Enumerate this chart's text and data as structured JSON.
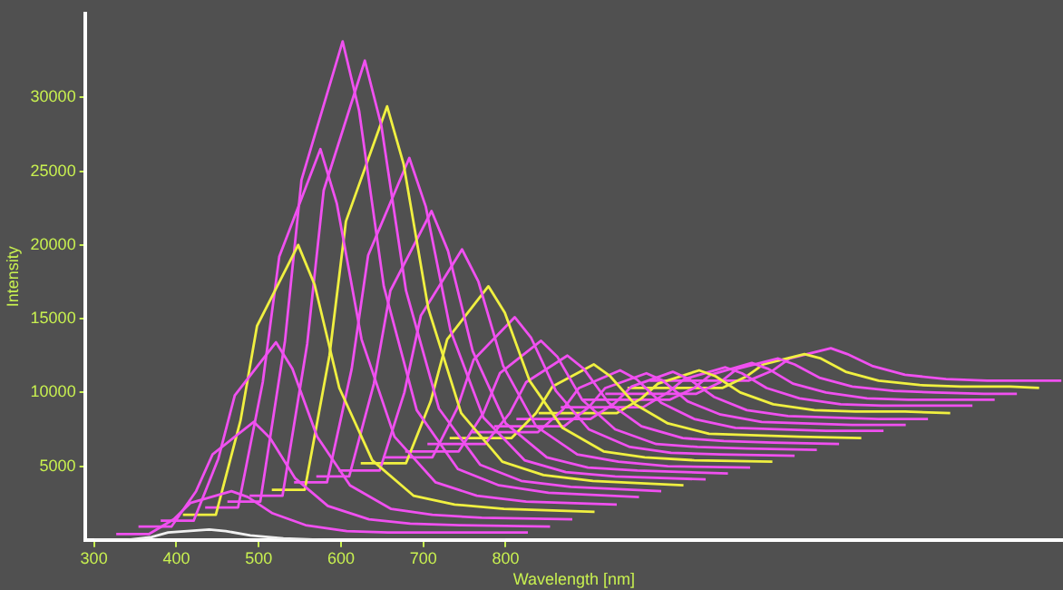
{
  "chart_data": {
    "type": "line",
    "xlabel": "Wavelength [nm]",
    "ylabel": "Intensity",
    "xlim": [
      289,
      1477
    ],
    "ylim": [
      0,
      35700
    ],
    "xticks": [
      300,
      400,
      500,
      600,
      700,
      800
    ],
    "yticks": [
      5000,
      10000,
      15000,
      20000,
      25000,
      30000
    ],
    "grid": false,
    "legend": false,
    "series": [
      {
        "color": "#f0f0f0",
        "x": [
          300,
          340,
          370,
          390,
          440,
          460,
          490,
          530,
          580,
          630,
          690,
          800
        ],
        "values": [
          0,
          0,
          200,
          500,
          700,
          600,
          300,
          100,
          0,
          0,
          0,
          0
        ]
      },
      {
        "color": "#f050f0",
        "x": [
          327,
          367,
          397,
          417,
          467,
          487,
          517,
          557,
          607,
          657,
          717,
          827
        ],
        "values": [
          400,
          400,
          1400,
          2500,
          3300,
          2900,
          1800,
          1000,
          600,
          500,
          500,
          500
        ]
      },
      {
        "color": "#f050f0",
        "x": [
          354,
          394,
          424,
          444,
          494,
          514,
          544,
          584,
          634,
          684,
          744,
          854
        ],
        "values": [
          900,
          900,
          3300,
          5800,
          8000,
          6900,
          4200,
          2300,
          1400,
          1100,
          1000,
          900
        ]
      },
      {
        "color": "#f050f0",
        "x": [
          381,
          421,
          451,
          471,
          521,
          541,
          571,
          611,
          661,
          711,
          771,
          881
        ],
        "values": [
          1300,
          1300,
          5500,
          9800,
          13400,
          11600,
          7000,
          3700,
          2100,
          1700,
          1500,
          1400
        ]
      },
      {
        "color": "#f0f040",
        "x": [
          408,
          448,
          478,
          498,
          548,
          568,
          598,
          638,
          688,
          738,
          798,
          908
        ],
        "values": [
          1700,
          1700,
          8100,
          14500,
          20000,
          17300,
          10300,
          5400,
          3000,
          2400,
          2100,
          1900
        ]
      },
      {
        "color": "#f050f0",
        "x": [
          435,
          475,
          505,
          525,
          575,
          595,
          625,
          665,
          715,
          765,
          825,
          935
        ],
        "values": [
          2200,
          2200,
          10700,
          19200,
          26500,
          22800,
          13600,
          7000,
          3900,
          3000,
          2600,
          2400
        ]
      },
      {
        "color": "#f050f0",
        "x": [
          462,
          502,
          532,
          552,
          602,
          622,
          652,
          692,
          742,
          792,
          852,
          962
        ],
        "values": [
          2600,
          2600,
          13500,
          24400,
          33800,
          29100,
          17200,
          8800,
          4800,
          3700,
          3200,
          2900
        ]
      },
      {
        "color": "#f050f0",
        "x": [
          489,
          529,
          559,
          579,
          629,
          649,
          679,
          719,
          769,
          819,
          879,
          989
        ],
        "values": [
          3000,
          3000,
          13300,
          23700,
          32500,
          28100,
          16900,
          8900,
          5100,
          4000,
          3600,
          3300
        ]
      },
      {
        "color": "#f0f040",
        "x": [
          516,
          556,
          586,
          606,
          656,
          676,
          706,
          746,
          796,
          846,
          906,
          1016
        ],
        "values": [
          3400,
          3400,
          12500,
          21600,
          29400,
          25500,
          15700,
          8600,
          5300,
          4400,
          4000,
          3700
        ]
      },
      {
        "color": "#f050f0",
        "x": [
          543,
          583,
          613,
          633,
          683,
          703,
          733,
          773,
          823,
          873,
          933,
          1043
        ],
        "values": [
          3900,
          3900,
          11600,
          19300,
          25900,
          22600,
          14200,
          8300,
          5400,
          4600,
          4300,
          4100
        ]
      },
      {
        "color": "#f050f0",
        "x": [
          570,
          610,
          640,
          660,
          710,
          730,
          760,
          800,
          850,
          900,
          960,
          1070
        ],
        "values": [
          4300,
          4300,
          10600,
          16900,
          22300,
          19600,
          12800,
          7900,
          5600,
          4900,
          4700,
          4500
        ]
      },
      {
        "color": "#f050f0",
        "x": [
          597,
          647,
          677,
          697,
          747,
          767,
          797,
          837,
          887,
          937,
          997,
          1097
        ],
        "values": [
          4700,
          4700,
          10000,
          15200,
          19700,
          17500,
          11800,
          7700,
          5800,
          5300,
          5000,
          4900
        ]
      },
      {
        "color": "#f0f040",
        "x": [
          624,
          679,
          709,
          729,
          779,
          799,
          829,
          869,
          919,
          969,
          1029,
          1124
        ],
        "values": [
          5200,
          5200,
          9400,
          13600,
          17200,
          15400,
          10800,
          7600,
          6000,
          5600,
          5400,
          5300
        ]
      },
      {
        "color": "#f050f0",
        "x": [
          651,
          711,
          741,
          761,
          811,
          831,
          861,
          901,
          951,
          1001,
          1061,
          1151
        ],
        "values": [
          5600,
          5600,
          8900,
          12200,
          15100,
          13700,
          10100,
          7500,
          6300,
          5900,
          5800,
          5700
        ]
      },
      {
        "color": "#f050f0",
        "x": [
          678,
          743,
          773,
          793,
          843,
          863,
          893,
          933,
          983,
          1033,
          1093,
          1178
        ],
        "values": [
          6000,
          6000,
          8600,
          11300,
          13500,
          12400,
          9500,
          7500,
          6500,
          6300,
          6200,
          6100
        ]
      },
      {
        "color": "#f050f0",
        "x": [
          705,
          775,
          805,
          825,
          875,
          895,
          925,
          965,
          1015,
          1065,
          1125,
          1205
        ],
        "values": [
          6500,
          6500,
          8600,
          10700,
          12500,
          11600,
          9300,
          7700,
          6900,
          6700,
          6600,
          6500
        ]
      },
      {
        "color": "#f0f040",
        "x": [
          732,
          807,
          837,
          857,
          907,
          927,
          957,
          997,
          1047,
          1097,
          1157,
          1232
        ],
        "values": [
          6900,
          6900,
          8600,
          10400,
          11900,
          11100,
          9200,
          7900,
          7200,
          7100,
          7000,
          6900
        ]
      },
      {
        "color": "#f050f0",
        "x": [
          759,
          839,
          869,
          889,
          939,
          959,
          989,
          1029,
          1079,
          1129,
          1189,
          1259
        ],
        "values": [
          7300,
          7300,
          8800,
          10300,
          11500,
          10900,
          9300,
          8200,
          7600,
          7500,
          7400,
          7400
        ]
      },
      {
        "color": "#f050f0",
        "x": [
          786,
          871,
          901,
          921,
          971,
          991,
          1021,
          1061,
          1111,
          1161,
          1221,
          1286
        ],
        "values": [
          7700,
          7700,
          9000,
          10300,
          11300,
          10800,
          9400,
          8500,
          8000,
          7900,
          7800,
          7800
        ]
      },
      {
        "color": "#f050f0",
        "x": [
          813,
          903,
          933,
          953,
          1003,
          1023,
          1053,
          1093,
          1143,
          1193,
          1253,
          1313
        ],
        "values": [
          8200,
          8200,
          9300,
          10400,
          11400,
          10900,
          9700,
          8800,
          8400,
          8300,
          8200,
          8200
        ]
      },
      {
        "color": "#f0f040",
        "x": [
          840,
          935,
          965,
          985,
          1035,
          1055,
          1085,
          1125,
          1175,
          1225,
          1285,
          1340
        ],
        "values": [
          8600,
          8600,
          9600,
          10600,
          11500,
          11100,
          10000,
          9200,
          8800,
          8700,
          8700,
          8600
        ]
      },
      {
        "color": "#f050f0",
        "x": [
          867,
          967,
          997,
          1017,
          1067,
          1087,
          1117,
          1157,
          1207,
          1257,
          1317,
          1367
        ],
        "values": [
          9000,
          9000,
          10000,
          10900,
          11700,
          11300,
          10300,
          9600,
          9200,
          9100,
          9100,
          9100
        ]
      },
      {
        "color": "#f050f0",
        "x": [
          894,
          999,
          1029,
          1049,
          1099,
          1119,
          1149,
          1189,
          1239,
          1289,
          1349,
          1394
        ],
        "values": [
          9500,
          9500,
          10300,
          11200,
          12000,
          11600,
          10600,
          10000,
          9600,
          9500,
          9500,
          9500
        ]
      },
      {
        "color": "#f050f0",
        "x": [
          921,
          1031,
          1061,
          1081,
          1131,
          1151,
          1181,
          1221,
          1271,
          1321,
          1381,
          1421
        ],
        "values": [
          9900,
          9900,
          10700,
          11600,
          12300,
          11900,
          11000,
          10400,
          10100,
          10000,
          9900,
          9900
        ]
      },
      {
        "color": "#f0f040",
        "x": [
          948,
          1063,
          1093,
          1113,
          1163,
          1183,
          1213,
          1253,
          1303,
          1353,
          1413,
          1448
        ],
        "values": [
          10300,
          10300,
          11100,
          11900,
          12600,
          12300,
          11400,
          10800,
          10500,
          10400,
          10400,
          10300
        ]
      },
      {
        "color": "#f050f0",
        "x": [
          975,
          1095,
          1125,
          1145,
          1195,
          1215,
          1245,
          1285,
          1335,
          1385,
          1445,
          1475
        ],
        "values": [
          10800,
          10800,
          11500,
          12300,
          13000,
          12600,
          11800,
          11200,
          10900,
          10800,
          10800,
          10800
        ]
      }
    ]
  }
}
